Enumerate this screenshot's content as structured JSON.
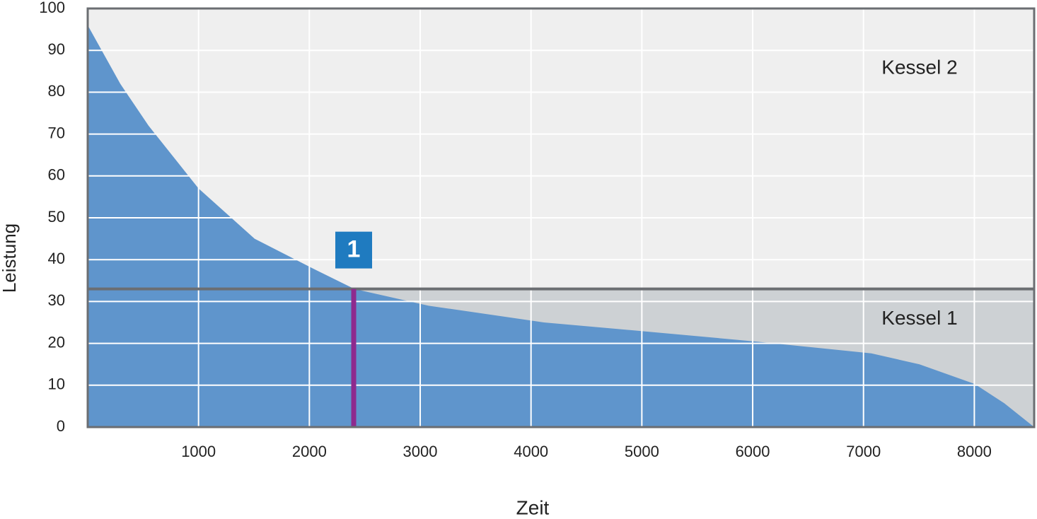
{
  "chart_data": {
    "type": "area",
    "xlabel": "Zeit",
    "ylabel": "Leistung",
    "x": [
      0,
      294,
      549,
      1000,
      1506,
      2023,
      2406,
      3076,
      4116,
      5137,
      6043,
      7071,
      7505,
      8003,
      8270,
      8540
    ],
    "values": [
      96,
      82,
      72,
      57,
      45,
      38,
      33,
      29,
      25,
      22.6,
      20.4,
      17.6,
      15,
      10.3,
      5.7,
      0
    ],
    "color": "#5f95cc",
    "xlim": [
      0,
      8540
    ],
    "ylim": [
      0,
      100
    ],
    "xticks": [
      1000,
      2000,
      3000,
      4000,
      5000,
      6000,
      7000,
      8000
    ],
    "yticks": [
      0,
      10,
      20,
      30,
      40,
      50,
      60,
      70,
      80,
      90,
      100
    ],
    "grid": true,
    "threshold": 33,
    "regions": [
      {
        "label": "Kessel 2",
        "color": "#efefef"
      },
      {
        "label": "Kessel 1",
        "color": "#cdd1d4"
      }
    ],
    "marker": {
      "x": 2400,
      "label": "1",
      "color": "#8e2a8e",
      "badge_color": "#1f7bc0"
    }
  }
}
